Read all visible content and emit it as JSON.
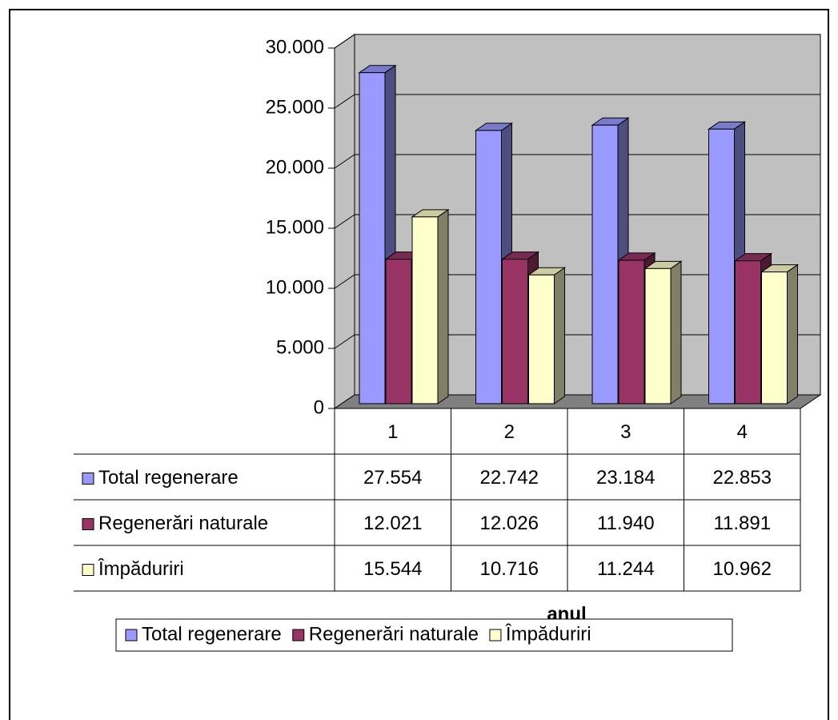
{
  "chart_data": {
    "type": "bar3d",
    "x_label": "anul",
    "categories": [
      "1",
      "2",
      "3",
      "4"
    ],
    "series": [
      {
        "name": "Total regenerare",
        "color": "#9999ff",
        "values": [
          27554,
          22742,
          23184,
          22853
        ],
        "value_labels": [
          "27.554",
          "22.742",
          "23.184",
          "22.853"
        ]
      },
      {
        "name": "Regenerări naturale",
        "color": "#993366",
        "values": [
          12021,
          12026,
          11940,
          11891
        ],
        "value_labels": [
          "12.021",
          "12.026",
          "11.940",
          "11.891"
        ]
      },
      {
        "name": "Împăduriri",
        "color": "#ffffcc",
        "values": [
          15544,
          10716,
          11244,
          10962
        ],
        "value_labels": [
          "15.544",
          "10.716",
          "11.244",
          "10.962"
        ]
      }
    ],
    "ylim": [
      0,
      30000
    ],
    "yticks": [
      0,
      {
        "value": 5000,
        "label": "5.000"
      },
      {
        "value": 10000,
        "label": "10.000"
      },
      {
        "value": 15000,
        "label": "15.000"
      },
      {
        "value": 20000,
        "label": "20.000"
      },
      {
        "value": 25000,
        "label": "25.000"
      },
      {
        "value": 30000,
        "label": "30.000"
      }
    ],
    "grid": true,
    "legend": "bottom"
  }
}
